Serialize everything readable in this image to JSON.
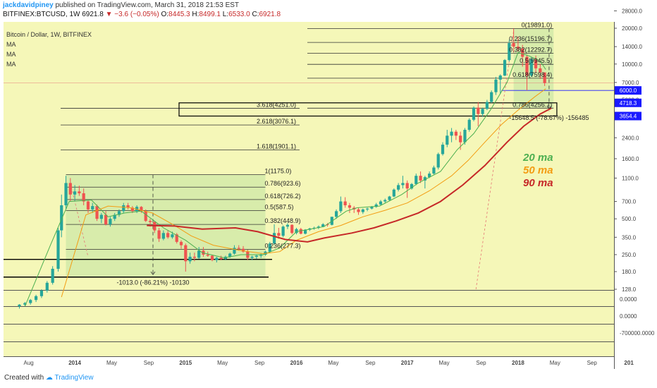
{
  "header": {
    "user": "jackdavidpiney",
    "published_text": "published on TradingView.com, March 31, 2018 21:53 EST",
    "symbol": "BITFINEX:BTCUSD, 1W",
    "price": "6921.8",
    "change": "−3.6 (−0.05%)",
    "o_label": "O:",
    "o": "8445.3",
    "h_label": "H:",
    "h": "8499.1",
    "l_label": "L:",
    "l": "6533.0",
    "c_label": "C:",
    "c": "6921.8"
  },
  "legend": {
    "title": "Bitcoin / Dollar, 1W, BITFINEX",
    "ma1": "MA",
    "ma2": "MA",
    "ma3": "MA"
  },
  "footer": {
    "created_with": "Created with",
    "brand": "TradingView"
  },
  "colors": {
    "panel_bg": "#f5f7b8",
    "up": "#26a69a",
    "down": "#ef5350",
    "ma20": "#4caf50",
    "ma50": "#f39c12",
    "ma90": "#c62828",
    "price_tag": "#1a1aff"
  },
  "chart_data": {
    "type": "candlestick",
    "y_scale": "log",
    "ylim": [
      110,
      28000
    ],
    "y_ticks": [
      "28000.0",
      "20000.0",
      "14000.0",
      "10000.0",
      "7000.0",
      "5000.0",
      "3500.0",
      "2400.0",
      "1600.0",
      "1100.0",
      "700.0",
      "500.0",
      "350.0",
      "250.0",
      "180.0",
      "128.0"
    ],
    "y_tick_values": [
      28000,
      20000,
      14000,
      10000,
      7000,
      5000,
      3500,
      2400,
      1600,
      1100,
      700,
      500,
      350,
      250,
      180,
      128
    ],
    "x_ticks": [
      "Aug",
      "2014",
      "May",
      "Sep",
      "2015",
      "May",
      "Sep",
      "2016",
      "May",
      "Sep",
      "2017",
      "May",
      "Sep",
      "2018",
      "May",
      "Sep",
      "201"
    ],
    "x_tick_dates": [
      "2013-08-01",
      "2014-01-01",
      "2014-05-01",
      "2014-09-01",
      "2015-01-01",
      "2015-05-01",
      "2015-09-01",
      "2016-01-01",
      "2016-05-01",
      "2016-09-01",
      "2017-01-01",
      "2017-05-01",
      "2017-09-01",
      "2018-01-01",
      "2018-05-01",
      "2018-09-01",
      "2019-01-01"
    ],
    "price_tags": [
      {
        "label": "6000.0",
        "value": 6000
      },
      {
        "label": "4718.3",
        "value": 4718.3
      },
      {
        "label": "3654.4",
        "value": 3654.4
      }
    ],
    "fib_2018": [
      {
        "label": "0(19891.0)",
        "value": 19891
      },
      {
        "label": "0.236(15196.7)",
        "value": 15196.7
      },
      {
        "label": "0.382(12292.7)",
        "value": 12292.7
      },
      {
        "label": "0.5(9945.5)",
        "value": 9945.5
      },
      {
        "label": "0.618(7598.4)",
        "value": 7598.4
      },
      {
        "label": "0.786(4256.7)",
        "value": 4256.7
      }
    ],
    "fib_2014": [
      {
        "label": "1(1175.0)",
        "value": 1175
      },
      {
        "label": "0.786(923.6)",
        "value": 923.6
      },
      {
        "label": "0.618(726.2)",
        "value": 726.2
      },
      {
        "label": "0.5(587.5)",
        "value": 587.5
      },
      {
        "label": "0.382(448.9)",
        "value": 448.9
      },
      {
        "label": "0.236(277.3)",
        "value": 277.3
      }
    ],
    "extensions": [
      {
        "label": "3.618(4251.0)",
        "value": 4251
      },
      {
        "label": "2.618(3076.1)",
        "value": 3076.1
      },
      {
        "label": "1.618(1901.1)",
        "value": 1901.1
      }
    ],
    "measurements": [
      {
        "label": "-15648.5 (-78.67%) -156485"
      },
      {
        "label": "-1013.0 (-86.21%) -10130"
      }
    ],
    "ma_labels": [
      {
        "name": "20 ma"
      },
      {
        "name": "50 ma"
      },
      {
        "name": "90 ma"
      }
    ],
    "indicator_ticks": [
      "0.0000",
      "0.0000",
      "-700000.0000"
    ],
    "ma_values": {
      "ma20": [
        [
          2013.55,
          92
        ],
        [
          2013.78,
          300
        ],
        [
          2013.95,
          700
        ],
        [
          2014.15,
          720
        ],
        [
          2014.3,
          520
        ],
        [
          2014.45,
          560
        ],
        [
          2014.6,
          580
        ],
        [
          2014.8,
          420
        ],
        [
          2015.0,
          330
        ],
        [
          2015.15,
          260
        ],
        [
          2015.35,
          235
        ],
        [
          2015.5,
          250
        ],
        [
          2015.7,
          250
        ],
        [
          2015.85,
          285
        ],
        [
          2016.0,
          390
        ],
        [
          2016.25,
          430
        ],
        [
          2016.45,
          580
        ],
        [
          2016.55,
          620
        ],
        [
          2016.75,
          640
        ],
        [
          2016.95,
          800
        ],
        [
          2017.1,
          1000
        ],
        [
          2017.3,
          1250
        ],
        [
          2017.45,
          1900
        ],
        [
          2017.6,
          2600
        ],
        [
          2017.75,
          4100
        ],
        [
          2017.9,
          7000
        ],
        [
          2018.0,
          12500
        ],
        [
          2018.1,
          11700
        ],
        [
          2018.2,
          10600
        ],
        [
          2018.25,
          9000
        ]
      ],
      "ma50": [
        [
          2013.88,
          110
        ],
        [
          2014.1,
          540
        ],
        [
          2014.3,
          640
        ],
        [
          2014.5,
          620
        ],
        [
          2014.7,
          560
        ],
        [
          2014.9,
          440
        ],
        [
          2015.05,
          360
        ],
        [
          2015.25,
          300
        ],
        [
          2015.5,
          270
        ],
        [
          2015.7,
          255
        ],
        [
          2015.85,
          265
        ],
        [
          2016.0,
          330
        ],
        [
          2016.2,
          390
        ],
        [
          2016.4,
          440
        ],
        [
          2016.6,
          520
        ],
        [
          2016.8,
          590
        ],
        [
          2017.0,
          680
        ],
        [
          2017.2,
          860
        ],
        [
          2017.4,
          1150
        ],
        [
          2017.55,
          1550
        ],
        [
          2017.7,
          2200
        ],
        [
          2017.85,
          3100
        ],
        [
          2018.0,
          4100
        ],
        [
          2018.15,
          5300
        ],
        [
          2018.25,
          6200
        ]
      ],
      "ma90": [
        [
          2014.65,
          440
        ],
        [
          2014.9,
          435
        ],
        [
          2015.15,
          410
        ],
        [
          2015.45,
          420
        ],
        [
          2015.65,
          390
        ],
        [
          2015.9,
          335
        ],
        [
          2016.1,
          320
        ],
        [
          2016.25,
          345
        ],
        [
          2016.5,
          380
        ],
        [
          2016.7,
          420
        ],
        [
          2016.9,
          480
        ],
        [
          2017.1,
          560
        ],
        [
          2017.3,
          700
        ],
        [
          2017.5,
          960
        ],
        [
          2017.7,
          1400
        ],
        [
          2017.9,
          2200
        ],
        [
          2018.05,
          3000
        ],
        [
          2018.2,
          3800
        ],
        [
          2018.3,
          4250
        ]
      ]
    },
    "candles": [
      [
        2013.5,
        92,
        96,
        88,
        95
      ],
      [
        2013.55,
        95,
        100,
        92,
        98
      ],
      [
        2013.6,
        98,
        106,
        95,
        104
      ],
      [
        2013.65,
        104,
        115,
        100,
        112
      ],
      [
        2013.7,
        112,
        128,
        108,
        125
      ],
      [
        2013.75,
        125,
        150,
        120,
        145
      ],
      [
        2013.8,
        145,
        200,
        140,
        190
      ],
      [
        2013.85,
        190,
        420,
        180,
        400
      ],
      [
        2013.88,
        400,
        800,
        350,
        650
      ],
      [
        2013.92,
        650,
        1150,
        600,
        1000
      ],
      [
        2013.96,
        1000,
        1100,
        700,
        800
      ],
      [
        2014.0,
        800,
        960,
        700,
        850
      ],
      [
        2014.04,
        850,
        950,
        780,
        820
      ],
      [
        2014.08,
        820,
        900,
        650,
        700
      ],
      [
        2014.12,
        700,
        720,
        560,
        600
      ],
      [
        2014.16,
        600,
        680,
        560,
        640
      ],
      [
        2014.2,
        640,
        660,
        480,
        500
      ],
      [
        2014.24,
        500,
        560,
        460,
        540
      ],
      [
        2014.28,
        540,
        580,
        440,
        450
      ],
      [
        2014.32,
        450,
        520,
        430,
        500
      ],
      [
        2014.36,
        500,
        560,
        480,
        540
      ],
      [
        2014.4,
        540,
        600,
        520,
        580
      ],
      [
        2014.44,
        580,
        680,
        560,
        650
      ],
      [
        2014.48,
        650,
        680,
        600,
        620
      ],
      [
        2014.52,
        620,
        640,
        560,
        580
      ],
      [
        2014.56,
        580,
        650,
        560,
        630
      ],
      [
        2014.6,
        630,
        640,
        560,
        580
      ],
      [
        2014.64,
        580,
        600,
        470,
        480
      ],
      [
        2014.68,
        480,
        500,
        430,
        470
      ],
      [
        2014.72,
        470,
        480,
        380,
        400
      ],
      [
        2014.76,
        400,
        420,
        320,
        340
      ],
      [
        2014.8,
        340,
        400,
        330,
        380
      ],
      [
        2014.84,
        380,
        400,
        340,
        350
      ],
      [
        2014.88,
        350,
        390,
        340,
        370
      ],
      [
        2014.92,
        370,
        380,
        310,
        320
      ],
      [
        2014.96,
        320,
        330,
        280,
        300
      ],
      [
        2015.0,
        300,
        310,
        180,
        220
      ],
      [
        2015.04,
        220,
        260,
        210,
        240
      ],
      [
        2015.08,
        240,
        260,
        220,
        235
      ],
      [
        2015.12,
        235,
        290,
        230,
        270
      ],
      [
        2015.16,
        270,
        290,
        240,
        250
      ],
      [
        2015.2,
        250,
        265,
        240,
        245
      ],
      [
        2015.24,
        245,
        250,
        220,
        225
      ],
      [
        2015.28,
        225,
        240,
        215,
        235
      ],
      [
        2015.32,
        235,
        245,
        225,
        230
      ],
      [
        2015.36,
        230,
        245,
        225,
        240
      ],
      [
        2015.4,
        240,
        260,
        235,
        255
      ],
      [
        2015.44,
        255,
        300,
        250,
        285
      ],
      [
        2015.48,
        285,
        300,
        270,
        280
      ],
      [
        2015.52,
        280,
        295,
        260,
        265
      ],
      [
        2015.56,
        265,
        275,
        225,
        235
      ],
      [
        2015.6,
        235,
        245,
        225,
        240
      ],
      [
        2015.64,
        240,
        250,
        230,
        245
      ],
      [
        2015.68,
        245,
        255,
        235,
        250
      ],
      [
        2015.72,
        250,
        270,
        245,
        265
      ],
      [
        2015.76,
        265,
        320,
        260,
        310
      ],
      [
        2015.8,
        310,
        450,
        300,
        380
      ],
      [
        2015.84,
        380,
        420,
        340,
        360
      ],
      [
        2015.88,
        360,
        440,
        350,
        430
      ],
      [
        2015.92,
        430,
        460,
        410,
        445
      ],
      [
        2015.96,
        445,
        450,
        370,
        380
      ],
      [
        2016.0,
        380,
        420,
        370,
        410
      ],
      [
        2016.04,
        410,
        420,
        370,
        375
      ],
      [
        2016.08,
        375,
        410,
        370,
        405
      ],
      [
        2016.12,
        405,
        420,
        395,
        415
      ],
      [
        2016.16,
        415,
        430,
        405,
        420
      ],
      [
        2016.2,
        420,
        440,
        410,
        430
      ],
      [
        2016.24,
        430,
        460,
        425,
        450
      ],
      [
        2016.28,
        450,
        460,
        430,
        445
      ],
      [
        2016.32,
        445,
        520,
        440,
        520
      ],
      [
        2016.36,
        520,
        600,
        500,
        580
      ],
      [
        2016.4,
        580,
        770,
        560,
        700
      ],
      [
        2016.44,
        700,
        760,
        620,
        650
      ],
      [
        2016.48,
        650,
        680,
        560,
        620
      ],
      [
        2016.52,
        620,
        640,
        560,
        600
      ],
      [
        2016.56,
        600,
        620,
        540,
        570
      ],
      [
        2016.6,
        570,
        610,
        550,
        600
      ],
      [
        2016.64,
        600,
        620,
        580,
        610
      ],
      [
        2016.68,
        610,
        640,
        600,
        630
      ],
      [
        2016.72,
        630,
        680,
        620,
        660
      ],
      [
        2016.76,
        660,
        720,
        650,
        700
      ],
      [
        2016.8,
        700,
        740,
        680,
        720
      ],
      [
        2016.84,
        720,
        780,
        710,
        770
      ],
      [
        2016.88,
        770,
        900,
        760,
        880
      ],
      [
        2016.92,
        880,
        1000,
        850,
        960
      ],
      [
        2016.96,
        960,
        1150,
        900,
        1000
      ],
      [
        2017.0,
        1000,
        1050,
        750,
        900
      ],
      [
        2017.04,
        900,
        1000,
        880,
        980
      ],
      [
        2017.08,
        980,
        1200,
        960,
        1150
      ],
      [
        2017.12,
        1150,
        1250,
        1000,
        1050
      ],
      [
        2017.16,
        1050,
        1150,
        900,
        1120
      ],
      [
        2017.2,
        1120,
        1250,
        1100,
        1200
      ],
      [
        2017.24,
        1200,
        1400,
        1180,
        1350
      ],
      [
        2017.28,
        1350,
        1800,
        1300,
        1750
      ],
      [
        2017.32,
        1750,
        2200,
        1700,
        2100
      ],
      [
        2017.36,
        2100,
        2800,
        2000,
        2500
      ],
      [
        2017.4,
        2500,
        2900,
        2200,
        2700
      ],
      [
        2017.44,
        2700,
        2800,
        2300,
        2500
      ],
      [
        2017.48,
        2500,
        2700,
        1900,
        2200
      ],
      [
        2017.52,
        2200,
        2900,
        2100,
        2800
      ],
      [
        2017.56,
        2800,
        3500,
        2700,
        3400
      ],
      [
        2017.6,
        3400,
        4400,
        3300,
        4300
      ],
      [
        2017.64,
        4300,
        4800,
        3000,
        3800
      ],
      [
        2017.68,
        3800,
        4300,
        3600,
        4200
      ],
      [
        2017.72,
        4200,
        5000,
        4100,
        4800
      ],
      [
        2017.76,
        4800,
        6000,
        4700,
        5800
      ],
      [
        2017.8,
        5800,
        7800,
        5500,
        7400
      ],
      [
        2017.84,
        7400,
        8200,
        5600,
        8000
      ],
      [
        2017.88,
        8000,
        11000,
        7900,
        10800
      ],
      [
        2017.92,
        10800,
        16000,
        10500,
        15000
      ],
      [
        2017.96,
        15000,
        19891,
        12500,
        14000
      ],
      [
        2018.0,
        14000,
        17000,
        12800,
        13500
      ],
      [
        2018.04,
        13500,
        14500,
        9500,
        11500
      ],
      [
        2018.08,
        11500,
        12000,
        6000,
        8000
      ],
      [
        2018.12,
        8000,
        11500,
        7800,
        11000
      ],
      [
        2018.16,
        11000,
        11800,
        8500,
        9200
      ],
      [
        2018.2,
        9200,
        10000,
        7500,
        8500
      ],
      [
        2018.24,
        8500,
        8500,
        6533,
        6921
      ]
    ]
  }
}
